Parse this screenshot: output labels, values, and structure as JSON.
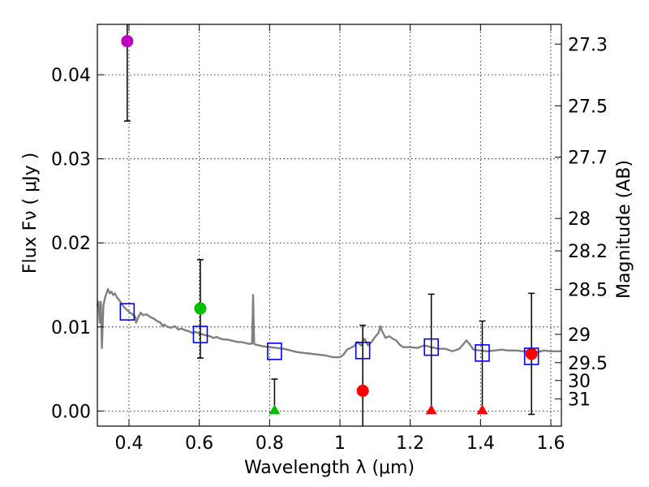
{
  "chart_data": {
    "type": "scatter",
    "xlabel": "Wavelength  λ (μm)",
    "ylabel": "Flux  Fν  ( μJy )",
    "ylabel2": "Magnitude (AB)",
    "xlim": [
      0.31,
      1.63
    ],
    "ylim": [
      -0.0018,
      0.046
    ],
    "grid": true,
    "x_ticks": [
      {
        "value": 0.4,
        "label": "0.4"
      },
      {
        "value": 0.6,
        "label": "0.6"
      },
      {
        "value": 0.8,
        "label": "0.8"
      },
      {
        "value": 1.0,
        "label": "1"
      },
      {
        "value": 1.2,
        "label": "1.2"
      },
      {
        "value": 1.4,
        "label": "1.4"
      },
      {
        "value": 1.6,
        "label": "1.6"
      }
    ],
    "y_ticks": [
      {
        "value": 0.0,
        "label": "0.00"
      },
      {
        "value": 0.01,
        "label": "0.01"
      },
      {
        "value": 0.02,
        "label": "0.02"
      },
      {
        "value": 0.03,
        "label": "0.03"
      },
      {
        "value": 0.04,
        "label": "0.04"
      }
    ],
    "magnitude_ticks": [
      {
        "mag": 27.3,
        "label": "27.3"
      },
      {
        "mag": 27.5,
        "label": "27.5"
      },
      {
        "mag": 27.7,
        "label": "27.7"
      },
      {
        "mag": 28.0,
        "label": "28"
      },
      {
        "mag": 28.2,
        "label": "28.2"
      },
      {
        "mag": 28.5,
        "label": "28.5"
      },
      {
        "mag": 29.0,
        "label": "29"
      },
      {
        "mag": 29.5,
        "label": "29.5"
      },
      {
        "mag": 30.0,
        "label": "30"
      },
      {
        "mag": 31.0,
        "label": "31"
      }
    ],
    "observed_points": [
      {
        "x": 0.395,
        "y": 0.044,
        "yerr_low": 0.0345,
        "yerr_high": 0.046,
        "color": "#bf00bf",
        "marker": "circle",
        "name": "photometry-point-f435w"
      },
      {
        "x": 0.603,
        "y": 0.0122,
        "yerr_low": 0.0063,
        "yerr_high": 0.018,
        "color": "#00bf00",
        "marker": "circle",
        "name": "photometry-point-f606w"
      },
      {
        "x": 0.814,
        "y": 0.0,
        "yerr_low": 0.0,
        "yerr_high": 0.0038,
        "color": "#00bf00",
        "marker": "triangle",
        "name": "upper-limit-f814w"
      },
      {
        "x": 1.065,
        "y": 0.0024,
        "yerr_low": -0.0018,
        "yerr_high": 0.0102,
        "color": "#ff0000",
        "marker": "circle",
        "name": "photometry-point-f105w"
      },
      {
        "x": 1.26,
        "y": 0.0,
        "yerr_low": 0.0,
        "yerr_high": 0.0139,
        "color": "#ff0000",
        "marker": "triangle",
        "name": "upper-limit-f125w"
      },
      {
        "x": 1.405,
        "y": 0.0,
        "yerr_low": 0.0,
        "yerr_high": 0.0107,
        "color": "#ff0000",
        "marker": "triangle",
        "name": "upper-limit-f140w"
      },
      {
        "x": 1.545,
        "y": 0.0068,
        "yerr_low": -0.0004,
        "yerr_high": 0.014,
        "color": "#ff0000",
        "marker": "circle",
        "name": "photometry-point-f160w"
      }
    ],
    "model_points": [
      {
        "x": 0.395,
        "y": 0.0118
      },
      {
        "x": 0.603,
        "y": 0.0091
      },
      {
        "x": 0.814,
        "y": 0.0071
      },
      {
        "x": 1.065,
        "y": 0.0072
      },
      {
        "x": 1.26,
        "y": 0.0076
      },
      {
        "x": 1.405,
        "y": 0.0069
      },
      {
        "x": 1.545,
        "y": 0.0065
      }
    ],
    "model_color": "#0000ff",
    "errorbar_color": "#000000",
    "sed_color": "#808080",
    "sed_curve": [
      [
        0.31,
        0.0125
      ],
      [
        0.313,
        0.013
      ],
      [
        0.317,
        0.0105
      ],
      [
        0.32,
        0.013
      ],
      [
        0.323,
        0.0075
      ],
      [
        0.327,
        0.0125
      ],
      [
        0.332,
        0.0135
      ],
      [
        0.336,
        0.014
      ],
      [
        0.34,
        0.0145
      ],
      [
        0.345,
        0.014
      ],
      [
        0.35,
        0.0142
      ],
      [
        0.355,
        0.0138
      ],
      [
        0.36,
        0.014
      ],
      [
        0.366,
        0.0135
      ],
      [
        0.372,
        0.0132
      ],
      [
        0.378,
        0.0128
      ],
      [
        0.385,
        0.0124
      ],
      [
        0.392,
        0.0121
      ],
      [
        0.4,
        0.0118
      ],
      [
        0.41,
        0.0115
      ],
      [
        0.418,
        0.0112
      ],
      [
        0.42,
        0.0105
      ],
      [
        0.425,
        0.011
      ],
      [
        0.433,
        0.0117
      ],
      [
        0.44,
        0.0114
      ],
      [
        0.45,
        0.0115
      ],
      [
        0.46,
        0.0112
      ],
      [
        0.47,
        0.011
      ],
      [
        0.48,
        0.0107
      ],
      [
        0.49,
        0.0105
      ],
      [
        0.495,
        0.0101
      ],
      [
        0.5,
        0.0103
      ],
      [
        0.51,
        0.01
      ],
      [
        0.52,
        0.0099
      ],
      [
        0.53,
        0.0101
      ],
      [
        0.54,
        0.0097
      ],
      [
        0.55,
        0.0098
      ],
      [
        0.56,
        0.0096
      ],
      [
        0.57,
        0.0095
      ],
      [
        0.58,
        0.0093
      ],
      [
        0.59,
        0.0094
      ],
      [
        0.6,
        0.0092
      ],
      [
        0.61,
        0.0091
      ],
      [
        0.62,
        0.009
      ],
      [
        0.63,
        0.0089
      ],
      [
        0.64,
        0.0087
      ],
      [
        0.65,
        0.0088
      ],
      [
        0.66,
        0.0086
      ],
      [
        0.67,
        0.0085
      ],
      [
        0.68,
        0.0085
      ],
      [
        0.69,
        0.0084
      ],
      [
        0.7,
        0.0083
      ],
      [
        0.71,
        0.0082
      ],
      [
        0.72,
        0.0082
      ],
      [
        0.73,
        0.0081
      ],
      [
        0.74,
        0.008
      ],
      [
        0.75,
        0.008
      ],
      [
        0.753,
        0.0138
      ],
      [
        0.756,
        0.008
      ],
      [
        0.76,
        0.0079
      ],
      [
        0.78,
        0.0077
      ],
      [
        0.8,
        0.0076
      ],
      [
        0.82,
        0.0075
      ],
      [
        0.84,
        0.0074
      ],
      [
        0.86,
        0.0072
      ],
      [
        0.88,
        0.007
      ],
      [
        0.9,
        0.0069
      ],
      [
        0.92,
        0.0068
      ],
      [
        0.94,
        0.0067
      ],
      [
        0.96,
        0.0066
      ],
      [
        0.98,
        0.0064
      ],
      [
        1.0,
        0.0064
      ],
      [
        1.01,
        0.0067
      ],
      [
        1.02,
        0.0073
      ],
      [
        1.03,
        0.0075
      ],
      [
        1.04,
        0.0077
      ],
      [
        1.05,
        0.0082
      ],
      [
        1.06,
        0.0078
      ],
      [
        1.07,
        0.0086
      ],
      [
        1.08,
        0.0078
      ],
      [
        1.09,
        0.0082
      ],
      [
        1.1,
        0.0088
      ],
      [
        1.11,
        0.0093
      ],
      [
        1.115,
        0.0101
      ],
      [
        1.12,
        0.0095
      ],
      [
        1.13,
        0.0087
      ],
      [
        1.14,
        0.0089
      ],
      [
        1.15,
        0.0086
      ],
      [
        1.16,
        0.0084
      ],
      [
        1.17,
        0.0079
      ],
      [
        1.18,
        0.0076
      ],
      [
        1.2,
        0.0076
      ],
      [
        1.22,
        0.0075
      ],
      [
        1.24,
        0.0078
      ],
      [
        1.26,
        0.0076
      ],
      [
        1.28,
        0.0074
      ],
      [
        1.3,
        0.0074
      ],
      [
        1.32,
        0.0071
      ],
      [
        1.34,
        0.0074
      ],
      [
        1.35,
        0.0079
      ],
      [
        1.36,
        0.0084
      ],
      [
        1.37,
        0.0079
      ],
      [
        1.38,
        0.0073
      ],
      [
        1.4,
        0.0072
      ],
      [
        1.42,
        0.0071
      ],
      [
        1.44,
        0.0072
      ],
      [
        1.46,
        0.0073
      ],
      [
        1.48,
        0.0072
      ],
      [
        1.5,
        0.0072
      ],
      [
        1.52,
        0.0071
      ],
      [
        1.54,
        0.0071
      ],
      [
        1.56,
        0.007
      ],
      [
        1.58,
        0.0072
      ],
      [
        1.6,
        0.0071
      ],
      [
        1.63,
        0.0071
      ]
    ]
  }
}
